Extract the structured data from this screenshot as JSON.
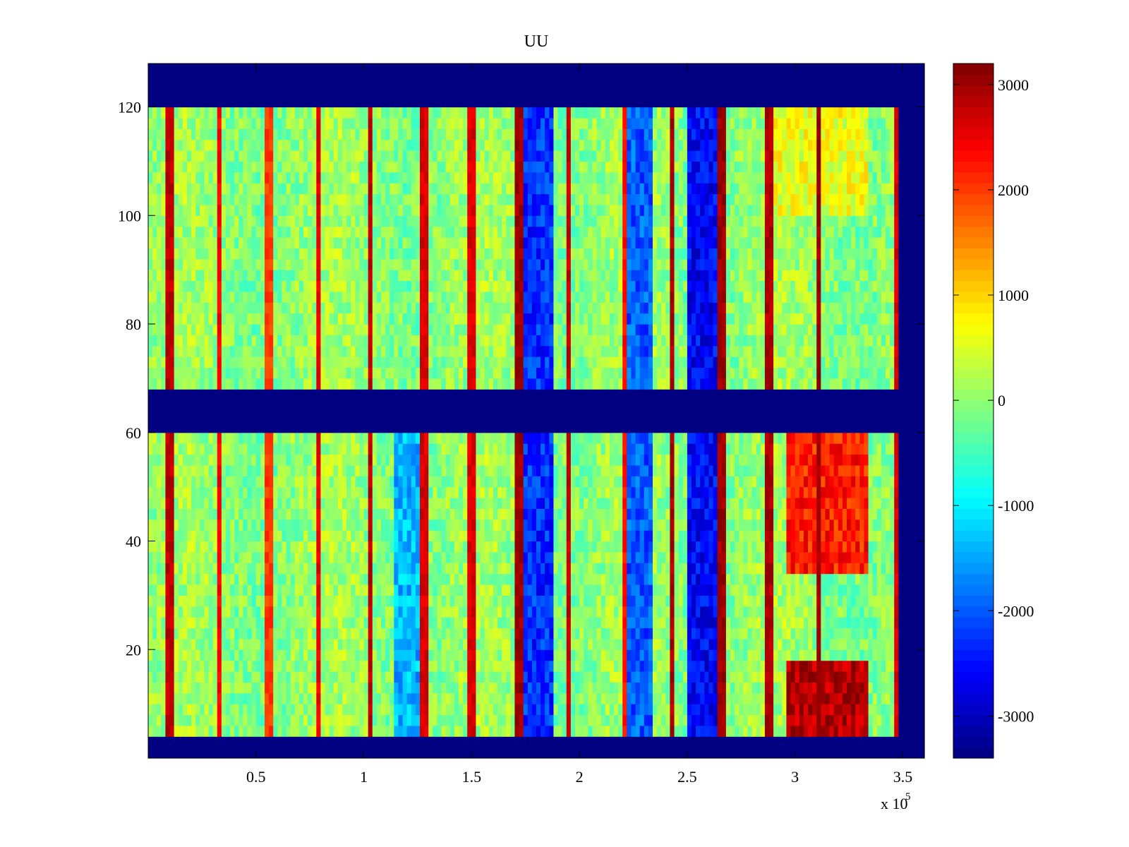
{
  "chart_data": {
    "type": "heatmap",
    "title": "UU",
    "xlabel": "",
    "ylabel": "",
    "x_range": [
      0,
      3.6
    ],
    "x_exponent_label": "x 10",
    "x_exponent_power": "5",
    "y_range": [
      0,
      128
    ],
    "x_ticks": [
      0.5,
      1,
      1.5,
      2,
      2.5,
      3,
      3.5
    ],
    "x_tick_labels": [
      "0.5",
      "1",
      "1.5",
      "2",
      "2.5",
      "3",
      "3.5"
    ],
    "y_ticks": [
      20,
      40,
      60,
      80,
      100,
      120
    ],
    "y_tick_labels": [
      "20",
      "40",
      "60",
      "80",
      "100",
      "120"
    ],
    "colorbar": {
      "colormap": "jet",
      "range": [
        -3400,
        3200
      ],
      "ticks": [
        -3000,
        -2000,
        -1000,
        0,
        1000,
        2000,
        3000
      ],
      "tick_labels": [
        "-3000",
        "-2000",
        "-1000",
        "0",
        "1000",
        "2000",
        "3000"
      ]
    },
    "masked_value": -3400,
    "masked_regions": [
      {
        "name": "bottom band",
        "x": [
          0,
          3.6
        ],
        "y": [
          0,
          3
        ]
      },
      {
        "name": "middle band",
        "x": [
          0,
          3.6
        ],
        "y": [
          61,
          67
        ]
      },
      {
        "name": "top band",
        "x": [
          0,
          3.6
        ],
        "y": [
          121,
          128
        ]
      },
      {
        "name": "right band",
        "x": [
          3.48,
          3.6
        ],
        "y": [
          0,
          128
        ]
      }
    ],
    "data_x_extent": [
      0,
      3.48
    ],
    "baseline_value": 0,
    "vertical_streaks": [
      {
        "x": 0.1,
        "value": 3000
      },
      {
        "x": 0.33,
        "value": 2600
      },
      {
        "x": 0.56,
        "value": 2200
      },
      {
        "x": 0.79,
        "value": 2700
      },
      {
        "x": 1.03,
        "value": 3000
      },
      {
        "x": 1.28,
        "value": 2800
      },
      {
        "x": 1.5,
        "value": 2800
      },
      {
        "x": 1.72,
        "value": 3200
      },
      {
        "x": 1.95,
        "value": 2900
      },
      {
        "x": 2.21,
        "value": 2500
      },
      {
        "x": 2.43,
        "value": 3100
      },
      {
        "x": 2.66,
        "value": 3200
      },
      {
        "x": 2.88,
        "value": 3100
      },
      {
        "x": 3.11,
        "value": 3200
      },
      {
        "x": 3.47,
        "value": 2800
      }
    ],
    "features": [
      {
        "x": [
          1.15,
          1.27
        ],
        "y": [
          3,
          61
        ],
        "value": -1400
      },
      {
        "x": [
          1.75,
          1.88
        ],
        "y": [
          3,
          121
        ],
        "value": -2300
      },
      {
        "x": [
          2.22,
          2.33
        ],
        "y": [
          3,
          121
        ],
        "value": -2000
      },
      {
        "x": [
          2.51,
          2.65
        ],
        "y": [
          3,
          121
        ],
        "value": -2600
      },
      {
        "x": [
          2.95,
          3.33
        ],
        "y": [
          34,
          61
        ],
        "value": 2200
      },
      {
        "x": [
          2.95,
          3.33
        ],
        "y": [
          5,
          17
        ],
        "value": 2900
      },
      {
        "x": [
          2.85,
          3.33
        ],
        "y": [
          100,
          121
        ],
        "value": 600
      }
    ]
  }
}
